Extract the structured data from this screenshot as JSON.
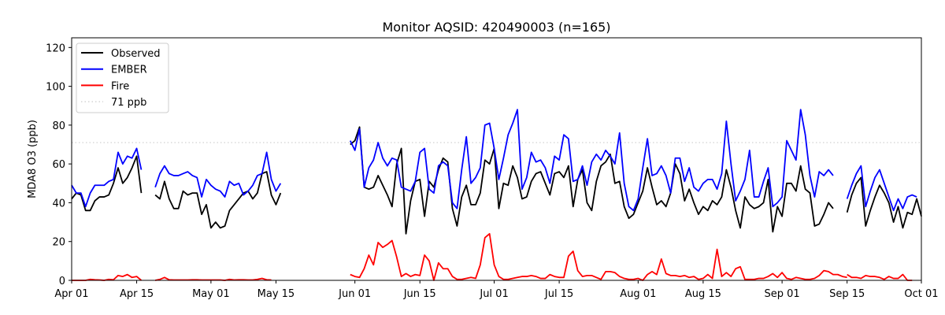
{
  "chart_data": {
    "type": "line",
    "title": "Monitor AQSID: 420490003 (n=165)",
    "xlabel": "",
    "ylabel": "MDA8 O3 (ppb)",
    "xlim": [
      0,
      183
    ],
    "ylim": [
      0,
      125
    ],
    "grid": false,
    "legend_position": "top-left",
    "x_ticks": [
      {
        "x": 0,
        "label": "Apr 01"
      },
      {
        "x": 14,
        "label": "Apr 15"
      },
      {
        "x": 30,
        "label": "May 01"
      },
      {
        "x": 44,
        "label": "May 15"
      },
      {
        "x": 61,
        "label": "Jun 01"
      },
      {
        "x": 75,
        "label": "Jun 15"
      },
      {
        "x": 91,
        "label": "Jul 01"
      },
      {
        "x": 105,
        "label": "Jul 15"
      },
      {
        "x": 122,
        "label": "Aug 01"
      },
      {
        "x": 136,
        "label": "Aug 15"
      },
      {
        "x": 153,
        "label": "Sep 01"
      },
      {
        "x": 167,
        "label": "Sep 15"
      },
      {
        "x": 183,
        "label": "Oct 01"
      }
    ],
    "y_ticks": [
      0,
      20,
      40,
      60,
      80,
      100,
      120
    ],
    "threshold": {
      "value": 71,
      "label": "71 ppb",
      "color": "#cccccc"
    },
    "series": [
      {
        "name": "Observed",
        "color": "#000000",
        "segments": [
          {
            "start": 0,
            "values": [
              42,
              45,
              44,
              36,
              36,
              41,
              43,
              43,
              44,
              50,
              58,
              50,
              53,
              58,
              64,
              45
            ]
          },
          {
            "start": 18,
            "values": [
              44,
              42,
              51,
              42,
              37,
              37,
              46,
              44,
              45,
              45,
              34,
              39,
              27,
              30,
              27,
              28,
              36,
              39,
              42,
              45,
              46,
              42,
              45,
              55,
              56,
              44,
              39,
              45
            ]
          },
          {
            "start": 60,
            "values": [
              70,
              72,
              79,
              48,
              47,
              48,
              54,
              49,
              44,
              38,
              60,
              68,
              24,
              41,
              51,
              52,
              33,
              51,
              48,
              57,
              63,
              61,
              37,
              28,
              43,
              49,
              39,
              39,
              45,
              62,
              60,
              68,
              37,
              50,
              49,
              59,
              53,
              42,
              43,
              51,
              55,
              56,
              50,
              44,
              55,
              56,
              53,
              59,
              38,
              52,
              57,
              40,
              36,
              51,
              59,
              61,
              65,
              50,
              51,
              38,
              32,
              34,
              40,
              46,
              58,
              48,
              39,
              41,
              38,
              45,
              60,
              55,
              41,
              47,
              40,
              34,
              38,
              36,
              41,
              39,
              43,
              57,
              48,
              36,
              27,
              43,
              39,
              37,
              38,
              40,
              52,
              25,
              38,
              33,
              50,
              50,
              46,
              59,
              47,
              45,
              28,
              29,
              34,
              40,
              37
            ]
          },
          {
            "start": 167,
            "values": [
              35,
              44,
              50,
              53,
              28,
              36,
              43,
              49,
              45,
              40,
              30,
              38,
              27,
              35,
              34,
              42,
              33
            ]
          }
        ]
      },
      {
        "name": "EMBER",
        "color": "#0000ff",
        "segments": [
          {
            "start": 0,
            "values": [
              49,
              45,
              45,
              38,
              45,
              49,
              49,
              49,
              51,
              52,
              66,
              60,
              64,
              63,
              68,
              57
            ]
          },
          {
            "start": 18,
            "values": [
              48,
              55,
              59,
              55,
              54,
              54,
              55,
              56,
              54,
              53,
              43,
              52,
              49,
              47,
              46,
              43,
              51,
              49,
              50,
              44,
              46,
              49,
              54,
              55,
              66,
              52,
              46,
              50
            ]
          },
          {
            "start": 60,
            "values": [
              72,
              67,
              78,
              48,
              58,
              62,
              71,
              63,
              59,
              63,
              62,
              48,
              47,
              46,
              51,
              66,
              68,
              47,
              45,
              59,
              61,
              59,
              40,
              37,
              57,
              74,
              50,
              53,
              58,
              80,
              81,
              68,
              52,
              63,
              75,
              81,
              88,
              47,
              53,
              66,
              61,
              62,
              58,
              50,
              64,
              62,
              75,
              73,
              51,
              52,
              59,
              49,
              61,
              65,
              62,
              67,
              64,
              60,
              76,
              50,
              38,
              36,
              42,
              58,
              73,
              54,
              55,
              59,
              54,
              45,
              63,
              63,
              51,
              58,
              48,
              46,
              50,
              52,
              52,
              47,
              55,
              82,
              60,
              41,
              46,
              52,
              67,
              43,
              43,
              51,
              58,
              38,
              40,
              43,
              72,
              67,
              62,
              88,
              75,
              54,
              43,
              56,
              54,
              57,
              54
            ]
          },
          {
            "start": 167,
            "values": [
              42,
              49,
              55,
              59,
              38,
              46,
              53,
              57,
              50,
              43,
              36,
              42,
              37,
              43,
              44,
              43
            ]
          }
        ]
      },
      {
        "name": "Fire",
        "color": "#ff0000",
        "segments": [
          {
            "start": 0,
            "values": [
              0,
              0,
              0,
              0,
              0.5,
              0.3,
              0.2,
              0,
              0.5,
              0.3,
              2.5,
              2,
              3,
              1.5,
              2,
              0
            ]
          },
          {
            "start": 18,
            "values": [
              0,
              0.5,
              1.5,
              0.3,
              0.2,
              0.2,
              0.2,
              0.2,
              0.3,
              0.3,
              0.2,
              0.2,
              0.2,
              0.2,
              0.2,
              0,
              0.5,
              0.2,
              0.3,
              0.3,
              0.2,
              0.2,
              0.5,
              1,
              0.3,
              0.2
            ]
          },
          {
            "start": 60,
            "values": [
              3,
              2,
              1.5,
              6,
              13,
              8,
              19.5,
              17,
              18.5,
              20.5,
              12,
              2,
              3.5,
              2,
              3,
              2.5,
              13,
              10,
              0,
              9,
              6,
              6,
              2,
              0.5,
              0.5,
              1,
              1.5,
              1,
              8,
              22,
              24,
              8,
              2,
              0.5,
              0.5,
              1,
              1.5,
              2,
              2,
              2.5,
              2,
              1,
              1,
              3,
              2,
              1.5,
              1.5,
              12.5,
              15,
              5,
              2,
              2.5,
              2.5,
              1.5,
              0.5,
              4.5,
              4.5,
              4,
              2,
              1,
              0.5,
              0.5,
              1,
              0,
              3,
              4.5,
              3,
              11,
              3.5,
              2.5,
              2.5,
              2,
              2.5,
              1.5,
              2,
              0.5,
              1,
              3,
              1,
              16,
              2,
              4,
              2,
              6,
              7,
              0.5,
              0.5,
              0.5,
              1,
              1,
              2,
              3.5,
              1.5,
              4,
              1,
              0.5,
              1.5,
              1,
              0.5,
              0.5,
              1,
              2.5,
              5,
              4.5,
              3,
              3,
              2,
              1.5
            ]
          },
          {
            "start": 167,
            "values": [
              3,
              1.5,
              1.5,
              1,
              2.5,
              2,
              2,
              1.5,
              0.5,
              2,
              1,
              1,
              3,
              0,
              0
            ]
          }
        ]
      }
    ]
  }
}
